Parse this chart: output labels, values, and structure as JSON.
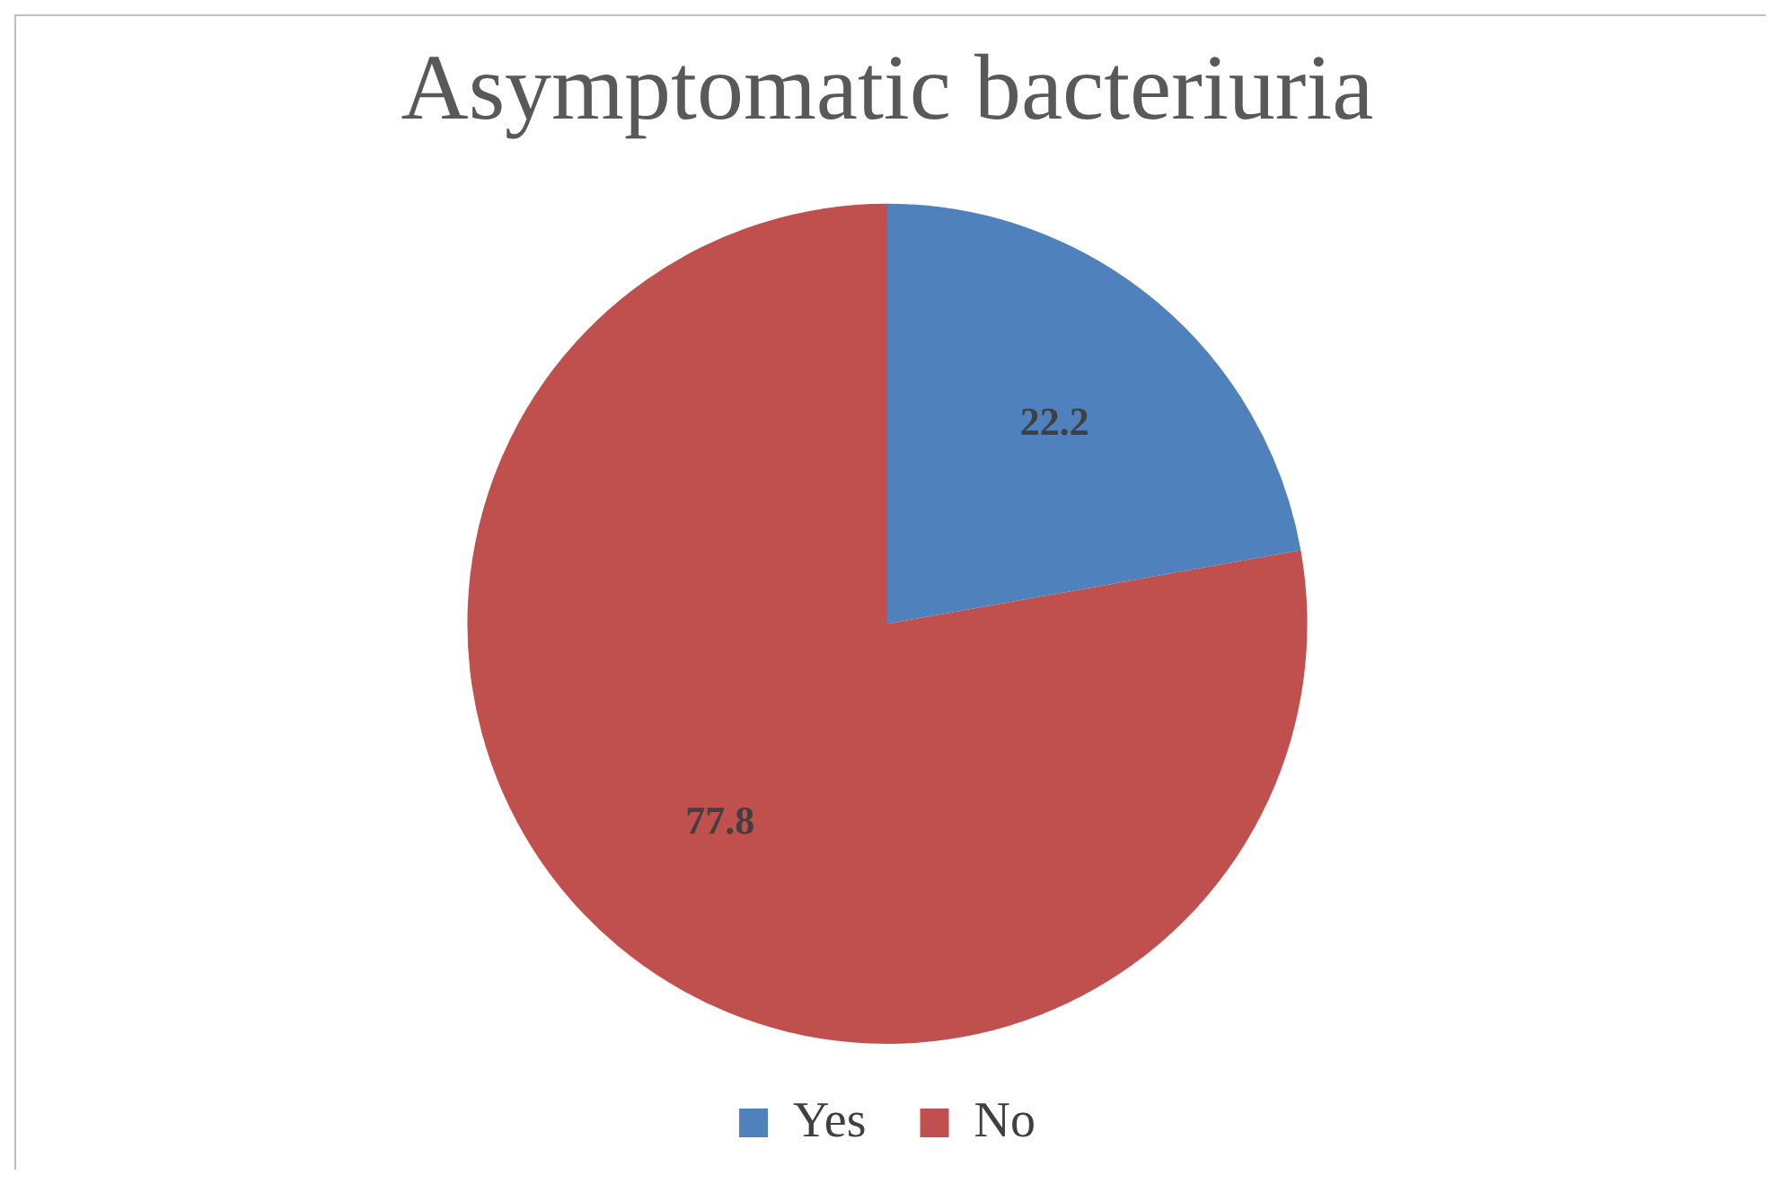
{
  "chart_data": {
    "type": "pie",
    "title": "Asymptomatic bacteriuria",
    "categories": [
      "Yes",
      "No"
    ],
    "values": [
      22.2,
      77.8
    ],
    "colors": [
      "#4f81bd",
      "#c0504d"
    ],
    "data_labels": true,
    "legend": "bottom"
  }
}
